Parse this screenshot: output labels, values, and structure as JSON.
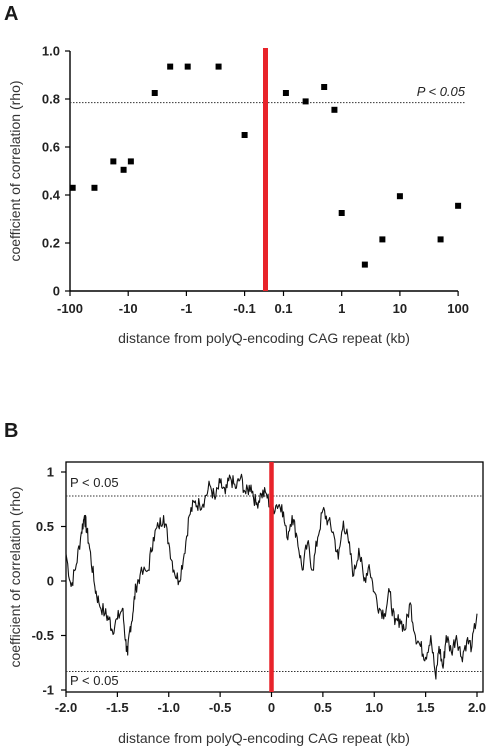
{
  "panels": [
    {
      "letter": "A",
      "sig_label": "P < 0.05",
      "chart_data": {
        "type": "scatter",
        "title": "",
        "xlabel": "distance from polyQ-encoding CAG repeat (kb)",
        "ylabel": "coefficient of correlation (rho)",
        "x_scale": "symmetric-log",
        "x_tick_labels": [
          "-100",
          "-10",
          "-1",
          "-0.1",
          "0.1",
          "1",
          "10",
          "100"
        ],
        "x_tick_values": [
          -100,
          -10,
          -1,
          -0.1,
          0.1,
          1,
          10,
          100
        ],
        "y_tick_labels": [
          "0",
          "0.2",
          "0.4",
          "0.6",
          "0.8",
          "1.0"
        ],
        "ylim": [
          0,
          1.0
        ],
        "center_line_color": "#e8232a",
        "significance_threshold": 0.785,
        "points": [
          {
            "x": -90,
            "y": 0.43
          },
          {
            "x": -38,
            "y": 0.43
          },
          {
            "x": -18,
            "y": 0.54
          },
          {
            "x": -12,
            "y": 0.505
          },
          {
            "x": -9,
            "y": 0.54
          },
          {
            "x": -3.5,
            "y": 0.825
          },
          {
            "x": -1.9,
            "y": 0.935
          },
          {
            "x": -0.95,
            "y": 0.935
          },
          {
            "x": -0.28,
            "y": 0.935
          },
          {
            "x": -0.1,
            "y": 0.65
          },
          {
            "x": 0.11,
            "y": 0.825
          },
          {
            "x": 0.24,
            "y": 0.79
          },
          {
            "x": 0.5,
            "y": 0.85
          },
          {
            "x": 0.75,
            "y": 0.755
          },
          {
            "x": 1.0,
            "y": 0.325
          },
          {
            "x": 2.5,
            "y": 0.11
          },
          {
            "x": 5,
            "y": 0.215
          },
          {
            "x": 10,
            "y": 0.395
          },
          {
            "x": 50,
            "y": 0.215
          },
          {
            "x": 100,
            "y": 0.355
          }
        ]
      }
    },
    {
      "letter": "B",
      "sig_label_upper": "P < 0.05",
      "sig_label_lower": "P < 0.05",
      "chart_data": {
        "type": "line",
        "title": "",
        "xlabel": "distance from polyQ-encoding CAG repeat (kb)",
        "ylabel": "coefficient of correlation (rho)",
        "x_tick_labels": [
          "-2.0",
          "-1.5",
          "-1.0",
          "-0.5",
          "0",
          "0.5",
          "1.0",
          "1.5",
          "2.0"
        ],
        "x_tick_values": [
          -2.0,
          -1.5,
          -1.0,
          -0.5,
          0,
          0.5,
          1.0,
          1.5,
          2.0
        ],
        "y_tick_labels": [
          "-1",
          "-0.5",
          "0",
          "0.5",
          "1"
        ],
        "xlim": [
          -2.0,
          2.0
        ],
        "ylim": [
          -1.0,
          1.0
        ],
        "center_line_color": "#e8232a",
        "significance_thresholds": [
          0.78,
          -0.83
        ],
        "series": [
          {
            "x": [
              -2.0,
              -1.95,
              -1.9,
              -1.85,
              -1.82,
              -1.8,
              -1.77,
              -1.72,
              -1.68,
              -1.62,
              -1.58,
              -1.55,
              -1.5,
              -1.45,
              -1.42,
              -1.4,
              -1.38,
              -1.35,
              -1.32,
              -1.28,
              -1.2,
              -1.15,
              -1.1,
              -1.05,
              -1.0,
              -0.95,
              -0.9,
              -0.85,
              -0.8,
              -0.75,
              -0.7,
              -0.65,
              -0.6,
              -0.55,
              -0.5,
              -0.45,
              -0.4,
              -0.35,
              -0.3,
              -0.25,
              -0.2,
              -0.15,
              -0.1,
              -0.05,
              0.0,
              0.05,
              0.1,
              0.15,
              0.2,
              0.25,
              0.3,
              0.35,
              0.4,
              0.45,
              0.5,
              0.55,
              0.6,
              0.65,
              0.7,
              0.75,
              0.8,
              0.85,
              0.9,
              0.95,
              1.0,
              1.05,
              1.1,
              1.15,
              1.2,
              1.25,
              1.3,
              1.35,
              1.4,
              1.45,
              1.5,
              1.55,
              1.6,
              1.63,
              1.67,
              1.7,
              1.75,
              1.8,
              1.85,
              1.9,
              1.95,
              2.0
            ],
            "y": [
              0.25,
              -0.05,
              0.15,
              0.45,
              0.6,
              0.48,
              0.3,
              -0.05,
              -0.2,
              -0.3,
              -0.35,
              -0.45,
              -0.35,
              -0.25,
              -0.55,
              -0.68,
              -0.45,
              -0.3,
              -0.05,
              0.05,
              0.1,
              0.4,
              0.5,
              0.6,
              0.35,
              0.1,
              0.0,
              0.25,
              0.6,
              0.72,
              0.7,
              0.75,
              0.88,
              0.75,
              0.9,
              0.8,
              0.95,
              0.85,
              0.95,
              0.8,
              0.88,
              0.7,
              0.8,
              0.8,
              0.65,
              0.7,
              0.7,
              0.4,
              0.6,
              0.4,
              0.1,
              0.35,
              0.1,
              0.4,
              0.65,
              0.55,
              0.45,
              0.2,
              0.55,
              0.35,
              0.05,
              0.3,
              0.0,
              0.15,
              -0.1,
              -0.25,
              -0.3,
              -0.1,
              -0.4,
              -0.35,
              -0.45,
              -0.2,
              -0.5,
              -0.6,
              -0.7,
              -0.5,
              -0.9,
              -0.6,
              -0.8,
              -0.5,
              -0.65,
              -0.5,
              -0.7,
              -0.55,
              -0.6,
              -0.3
            ]
          }
        ]
      }
    }
  ]
}
